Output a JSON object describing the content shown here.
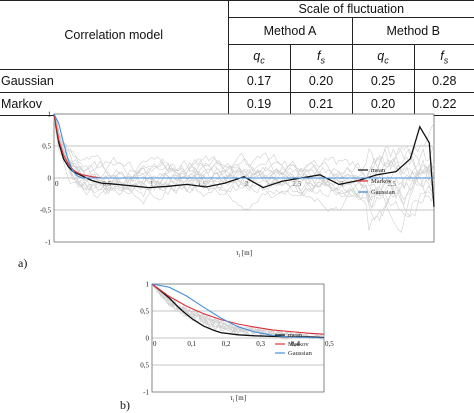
{
  "table": {
    "header_model": "Correlation model",
    "header_scale": "Scale of fluctuation",
    "method_a": "Method A",
    "method_b": "Method B",
    "symbols": {
      "q": "q",
      "q_sub": "c",
      "f": "f",
      "f_sub": "s"
    },
    "rows": [
      {
        "model": "Gaussian",
        "a_qc": "0.17",
        "a_fs": "0.20",
        "b_qc": "0.25",
        "b_fs": "0.28"
      },
      {
        "model": "Markov",
        "a_qc": "0.19",
        "a_fs": "0.21",
        "b_qc": "0.20",
        "b_fs": "0.22"
      }
    ]
  },
  "panel_labels": {
    "a": "a)",
    "b": "b)"
  },
  "colors": {
    "mean": "#111111",
    "markov": "#e0303a",
    "gaussian": "#4a90d9",
    "background_curves": "#cfcfcf",
    "grid": "#8a8a8a"
  },
  "chart_data": [
    {
      "type": "line",
      "xlabel": "τ_i [m]",
      "ylabel": "",
      "xlim": [
        0,
        4.0
      ],
      "ylim": [
        -1,
        1
      ],
      "xticks": [
        "0",
        "0,5",
        "1",
        "1,5",
        "2",
        "2,5",
        "3",
        "3,5"
      ],
      "yticks": [
        "1",
        "0,5",
        "0",
        "-0,5",
        "-1"
      ],
      "grid": true,
      "legend_position": "right",
      "legend": [
        "mean",
        "Markov",
        "Gaussian"
      ],
      "series": [
        {
          "name": "mean",
          "x": [
            0,
            0.05,
            0.1,
            0.15,
            0.2,
            0.3,
            0.4,
            0.5,
            0.6,
            0.8,
            1.0,
            1.2,
            1.4,
            1.6,
            1.8,
            2.0,
            2.2,
            2.4,
            2.6,
            2.8,
            3.0,
            3.2,
            3.4,
            3.6,
            3.75,
            3.85,
            3.95,
            4.0
          ],
          "y": [
            1.0,
            0.55,
            0.3,
            0.18,
            0.1,
            0.03,
            -0.04,
            -0.08,
            -0.09,
            -0.12,
            -0.15,
            -0.13,
            -0.1,
            -0.14,
            -0.08,
            0.02,
            -0.15,
            -0.05,
            0.0,
            0.05,
            -0.1,
            -0.04,
            0.05,
            0.1,
            0.3,
            0.8,
            0.55,
            -0.45
          ]
        },
        {
          "name": "Markov",
          "x": [
            0,
            0.05,
            0.1,
            0.15,
            0.2,
            0.25,
            0.3,
            0.4,
            0.5,
            4.0
          ],
          "y": [
            1.0,
            0.6,
            0.36,
            0.22,
            0.13,
            0.08,
            0.05,
            0.02,
            0.0,
            0.0
          ]
        },
        {
          "name": "Gaussian",
          "x": [
            0,
            0.05,
            0.1,
            0.15,
            0.2,
            0.25,
            0.3,
            0.4,
            0.5,
            4.0
          ],
          "y": [
            1.0,
            0.85,
            0.55,
            0.28,
            0.1,
            0.03,
            0.0,
            0.0,
            0.0,
            0.0
          ]
        }
      ]
    },
    {
      "type": "line",
      "xlabel": "τ_i [m]",
      "ylabel": "",
      "xlim": [
        0,
        0.5
      ],
      "ylim": [
        -1,
        1
      ],
      "xticks": [
        "0",
        "0,1",
        "0,2",
        "0,3",
        "0,4",
        "0,5"
      ],
      "yticks": [
        "1",
        "0,5",
        "0",
        "-0,5",
        "-1"
      ],
      "grid": true,
      "legend_position": "right",
      "legend": [
        "mean",
        "Markov",
        "Gaussian"
      ],
      "series": [
        {
          "name": "mean",
          "x": [
            0,
            0.02,
            0.05,
            0.08,
            0.1,
            0.12,
            0.15,
            0.18,
            0.2,
            0.25,
            0.3,
            0.35,
            0.4,
            0.45,
            0.5
          ],
          "y": [
            1.0,
            0.9,
            0.74,
            0.55,
            0.44,
            0.34,
            0.22,
            0.14,
            0.1,
            0.06,
            0.04,
            0.03,
            0.02,
            0.02,
            0.01
          ]
        },
        {
          "name": "Markov",
          "x": [
            0,
            0.05,
            0.1,
            0.15,
            0.2,
            0.25,
            0.3,
            0.35,
            0.4,
            0.45,
            0.5
          ],
          "y": [
            1.0,
            0.77,
            0.59,
            0.45,
            0.34,
            0.26,
            0.2,
            0.15,
            0.12,
            0.09,
            0.07
          ]
        },
        {
          "name": "Gaussian",
          "x": [
            0,
            0.05,
            0.1,
            0.15,
            0.2,
            0.25,
            0.3,
            0.35,
            0.4,
            0.5
          ],
          "y": [
            1.0,
            0.94,
            0.78,
            0.57,
            0.37,
            0.21,
            0.11,
            0.05,
            0.02,
            0.0
          ]
        }
      ]
    }
  ]
}
